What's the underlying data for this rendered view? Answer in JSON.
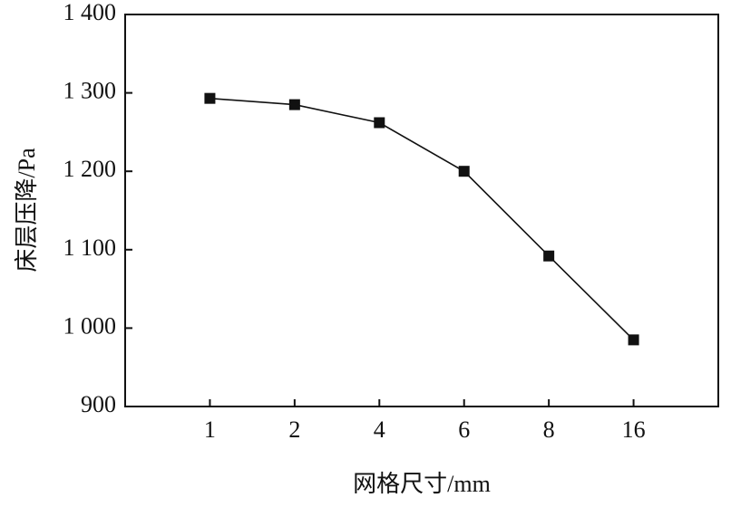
{
  "chart_data": {
    "type": "line",
    "x_label": "网格尺寸/mm",
    "y_label": "床层压降/Pa",
    "categories": [
      "1",
      "2",
      "4",
      "6",
      "8",
      "16"
    ],
    "series": [
      {
        "color": "#111111",
        "values": [
          1293,
          1285,
          1262,
          1200,
          1092,
          985
        ]
      }
    ],
    "ylim": [
      900,
      1400
    ],
    "yticks": [
      900,
      {
        "value": 1000,
        "label": "1 000"
      },
      {
        "value": 1100,
        "label": "1 100"
      },
      {
        "value": 1200,
        "label": "1 200"
      },
      {
        "value": 1300,
        "label": "1 300"
      },
      {
        "value": 1400,
        "label": "1 400"
      }
    ]
  }
}
